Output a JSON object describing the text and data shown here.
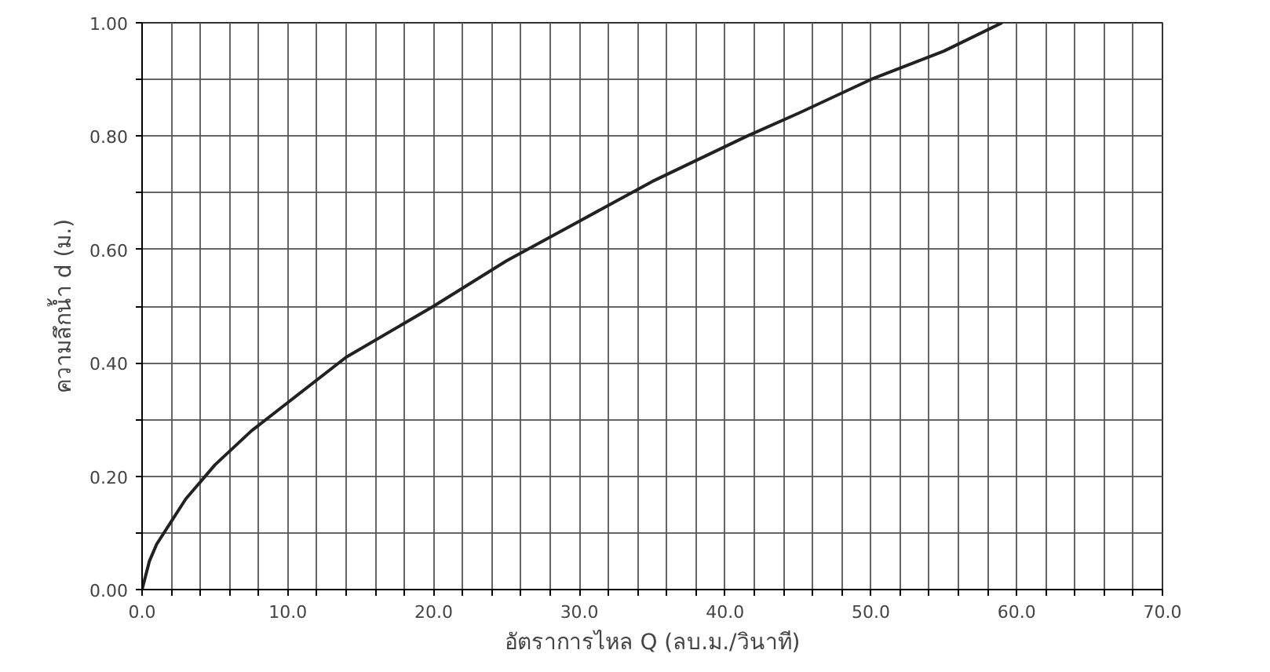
{
  "chart_data": {
    "type": "line",
    "xlabel": "อัตราการไหล Q (ลบ.ม./วินาที)",
    "ylabel": "ความลึกน้ำ d (ม.)",
    "x": [
      0,
      0.5,
      1,
      2,
      3,
      5,
      7.5,
      10,
      14,
      20,
      25,
      30,
      35,
      41.5,
      45,
      50,
      55,
      59
    ],
    "series": [
      {
        "color": "#222222",
        "values": [
          0,
          0.05,
          0.08,
          0.12,
          0.16,
          0.22,
          0.28,
          0.33,
          0.41,
          0.5,
          0.58,
          0.65,
          0.72,
          0.8,
          0.84,
          0.9,
          0.95,
          1.0
        ]
      }
    ],
    "xlim": [
      0,
      70
    ],
    "ylim": [
      0,
      1
    ],
    "xticks": [
      {
        "value": 0,
        "label": "0.0"
      },
      {
        "value": 2,
        "label": null
      },
      {
        "value": 4,
        "label": null
      },
      {
        "value": 6,
        "label": null
      },
      {
        "value": 8,
        "label": null
      },
      {
        "value": 10,
        "label": "10.0"
      },
      {
        "value": 12,
        "label": null
      },
      {
        "value": 14,
        "label": null
      },
      {
        "value": 16,
        "label": null
      },
      {
        "value": 18,
        "label": null
      },
      {
        "value": 20,
        "label": "20.0"
      },
      {
        "value": 22,
        "label": null
      },
      {
        "value": 24,
        "label": null
      },
      {
        "value": 26,
        "label": null
      },
      {
        "value": 28,
        "label": null
      },
      {
        "value": 30,
        "label": "30.0"
      },
      {
        "value": 32,
        "label": null
      },
      {
        "value": 34,
        "label": null
      },
      {
        "value": 36,
        "label": null
      },
      {
        "value": 38,
        "label": null
      },
      {
        "value": 40,
        "label": "40.0"
      },
      {
        "value": 42,
        "label": null
      },
      {
        "value": 44,
        "label": null
      },
      {
        "value": 46,
        "label": null
      },
      {
        "value": 48,
        "label": null
      },
      {
        "value": 50,
        "label": "50.0"
      },
      {
        "value": 52,
        "label": null
      },
      {
        "value": 54,
        "label": null
      },
      {
        "value": 56,
        "label": null
      },
      {
        "value": 58,
        "label": null
      },
      {
        "value": 60,
        "label": "60.0"
      },
      {
        "value": 62,
        "label": null
      },
      {
        "value": 64,
        "label": null
      },
      {
        "value": 66,
        "label": null
      },
      {
        "value": 68,
        "label": null
      },
      {
        "value": 70,
        "label": "70.0"
      }
    ],
    "yticks": [
      {
        "value": 0,
        "label": "0.00"
      },
      {
        "value": 0.1,
        "label": null
      },
      {
        "value": 0.2,
        "label": "0.20"
      },
      {
        "value": 0.3,
        "label": null
      },
      {
        "value": 0.4,
        "label": "0.40"
      },
      {
        "value": 0.5,
        "label": null
      },
      {
        "value": 0.6,
        "label": "0.60"
      },
      {
        "value": 0.7,
        "label": null
      },
      {
        "value": 0.8,
        "label": "0.80"
      },
      {
        "value": 0.9,
        "label": null
      },
      {
        "value": 1.0,
        "label": "1.00"
      }
    ],
    "grid": true
  }
}
